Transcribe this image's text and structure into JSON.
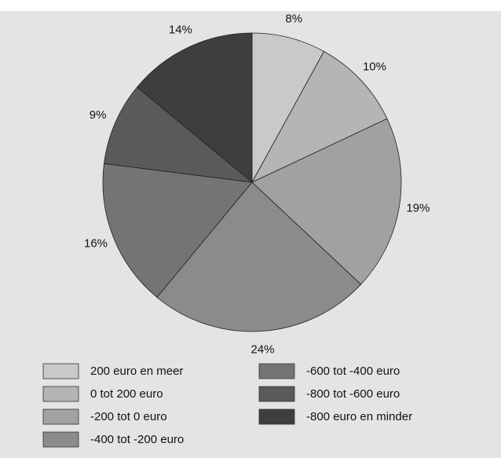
{
  "chart_data": {
    "type": "pie",
    "categories": [
      "200 euro en meer",
      "0 tot 200 euro",
      "-200 tot 0 euro",
      "-400 tot -200 euro",
      "-600 tot -400 euro",
      "-800 tot -600 euro",
      "-800 euro en minder"
    ],
    "values": [
      8,
      10,
      19,
      24,
      16,
      9,
      14
    ],
    "value_labels": [
      "8%",
      "10%",
      "19%",
      "24%",
      "16%",
      "9%",
      "14%"
    ],
    "colors": [
      "#c9c9c9",
      "#b5b5b5",
      "#a1a1a1",
      "#8b8b8b",
      "#747474",
      "#5a5a5a",
      "#3e3e3e"
    ],
    "legend": "bottom"
  }
}
